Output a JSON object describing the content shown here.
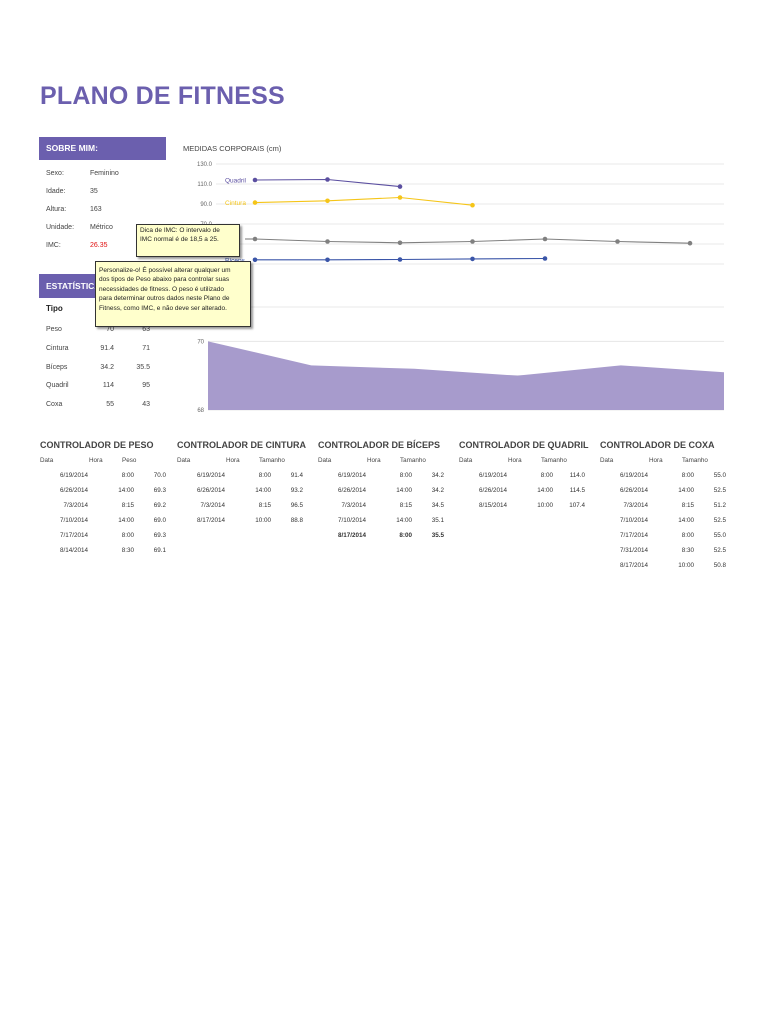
{
  "page_title": "PLANO DE FITNESS",
  "about": {
    "header": "SOBRE MIM:",
    "rows": [
      {
        "label": "Sexo:",
        "value": "Feminino"
      },
      {
        "label": "Idade:",
        "value": "35"
      },
      {
        "label": "Altura:",
        "value": "163"
      },
      {
        "label": "Unidade:",
        "value": "Métrico"
      },
      {
        "label": "IMC:",
        "value": "26.35"
      }
    ],
    "imc_color": "#e01010"
  },
  "tooltips": {
    "imc_line1": "Dica de IMC: O intervalo de",
    "imc_line2": "IMC normal é de 18,5 a 25.",
    "personalize": [
      "Personalize-o! É possível alterar qualquer um",
      "dos tipos de Peso abaixo para controlar suas",
      "necessidades de fitness. O peso é utilizado",
      "para determinar outros dados neste Plano de",
      "Fitness, como IMC, e não deve ser alterado."
    ]
  },
  "stats": {
    "header": "ESTATÍSTICA",
    "col_tipo": "Tipo",
    "rows": [
      {
        "tipo": "Peso",
        "a": "70",
        "b": "63"
      },
      {
        "tipo": "Cintura",
        "a": "91.4",
        "b": "71"
      },
      {
        "tipo": "Bíceps",
        "a": "34.2",
        "b": "35.5"
      },
      {
        "tipo": "Quadril",
        "a": "114",
        "b": "95"
      },
      {
        "tipo": "Coxa",
        "a": "55",
        "b": "43"
      }
    ]
  },
  "chart_data": [
    {
      "type": "line",
      "title": "MEDIDAS CORPORAIS (cm)",
      "yticks": [
        "130.0",
        "110.0",
        "90.0",
        "70.0"
      ],
      "ylim": [
        30,
        130
      ],
      "grid": true,
      "series": [
        {
          "name": "Quadril",
          "color": "#5b4fa0",
          "values": [
            114.0,
            114.5,
            107.4
          ]
        },
        {
          "name": "Cintura",
          "color": "#f5c518",
          "values": [
            91.4,
            93.2,
            96.5,
            88.8
          ]
        },
        {
          "name": "Coxa",
          "color": "#808080",
          "values": [
            55.0,
            52.5,
            51.2,
            52.5,
            55.0,
            52.5,
            50.8
          ]
        },
        {
          "name": "Bíceps",
          "color": "#3a55a8",
          "values": [
            34.2,
            34.2,
            34.5,
            35.1,
            35.5
          ]
        }
      ]
    },
    {
      "type": "area",
      "title": "",
      "yticks": [
        "70",
        "68"
      ],
      "ylim": [
        68,
        71
      ],
      "color": "#a79bcc",
      "values": [
        70.0,
        69.3,
        69.2,
        69.0,
        69.3,
        69.1
      ]
    }
  ],
  "trackers": [
    {
      "title": "CONTROLADOR DE PESO",
      "headers": [
        "Data",
        "Hora",
        "Peso"
      ],
      "rows": [
        [
          "6/19/2014",
          "8:00",
          "70.0"
        ],
        [
          "6/26/2014",
          "14:00",
          "69.3"
        ],
        [
          "7/3/2014",
          "8:15",
          "69.2"
        ],
        [
          "7/10/2014",
          "14:00",
          "69.0"
        ],
        [
          "7/17/2014",
          "8:00",
          "69.3"
        ],
        [
          "8/14/2014",
          "8:30",
          "69.1"
        ]
      ],
      "bold_rows": []
    },
    {
      "title": "CONTROLADOR DE CINTURA",
      "headers": [
        "Data",
        "Hora",
        "Tamanho"
      ],
      "rows": [
        [
          "6/19/2014",
          "8:00",
          "91.4"
        ],
        [
          "6/26/2014",
          "14:00",
          "93.2"
        ],
        [
          "7/3/2014",
          "8:15",
          "96.5"
        ],
        [
          "8/17/2014",
          "10:00",
          "88.8"
        ]
      ],
      "bold_rows": []
    },
    {
      "title": "CONTROLADOR DE BÍCEPS",
      "headers": [
        "Data",
        "Hora",
        "Tamanho"
      ],
      "rows": [
        [
          "6/19/2014",
          "8:00",
          "34.2"
        ],
        [
          "6/26/2014",
          "14:00",
          "34.2"
        ],
        [
          "7/3/2014",
          "8:15",
          "34.5"
        ],
        [
          "7/10/2014",
          "14:00",
          "35.1"
        ],
        [
          "8/17/2014",
          "8:00",
          "35.5"
        ]
      ],
      "bold_rows": [
        4
      ]
    },
    {
      "title": "CONTROLADOR DE QUADRIL",
      "headers": [
        "Data",
        "Hora",
        "Tamanho"
      ],
      "rows": [
        [
          "6/19/2014",
          "8:00",
          "114.0"
        ],
        [
          "6/26/2014",
          "14:00",
          "114.5"
        ],
        [
          "8/15/2014",
          "10:00",
          "107.4"
        ]
      ],
      "bold_rows": []
    },
    {
      "title": "CONTROLADOR DE COXA",
      "headers": [
        "Data",
        "Hora",
        "Tamanho"
      ],
      "rows": [
        [
          "6/19/2014",
          "8:00",
          "55.0"
        ],
        [
          "6/26/2014",
          "14:00",
          "52.5"
        ],
        [
          "7/3/2014",
          "8:15",
          "51.2"
        ],
        [
          "7/10/2014",
          "14:00",
          "52.5"
        ],
        [
          "7/17/2014",
          "8:00",
          "55.0"
        ],
        [
          "7/31/2014",
          "8:30",
          "52.5"
        ],
        [
          "8/17/2014",
          "10:00",
          "50.8"
        ]
      ],
      "bold_rows": []
    }
  ]
}
